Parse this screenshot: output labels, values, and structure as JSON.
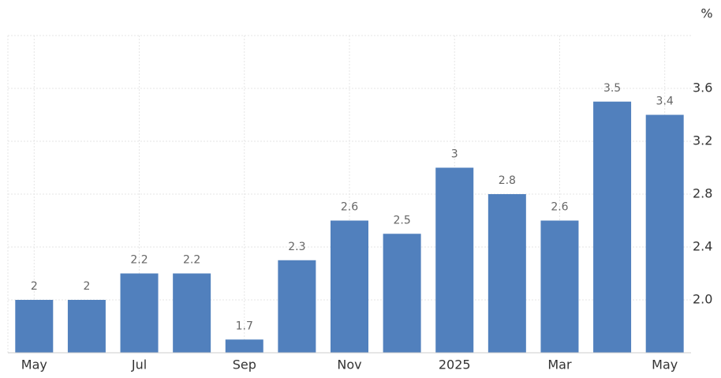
{
  "chart_data": {
    "type": "bar",
    "y_axis_label": "%",
    "categories": [
      "May",
      null,
      "Jul",
      null,
      "Sep",
      null,
      "Nov",
      null,
      "2025",
      null,
      "Mar",
      null,
      "May"
    ],
    "values": [
      2,
      2,
      2.2,
      2.2,
      1.7,
      2.3,
      2.6,
      2.5,
      3,
      2.8,
      2.6,
      3.5,
      3.4
    ],
    "color": "#5180bd",
    "ylim": [
      1.6,
      4.0
    ],
    "yticks": [
      {
        "value": 2,
        "label": "2.0"
      },
      2.4,
      2.8,
      3.2,
      3.6
    ],
    "grid": true
  }
}
